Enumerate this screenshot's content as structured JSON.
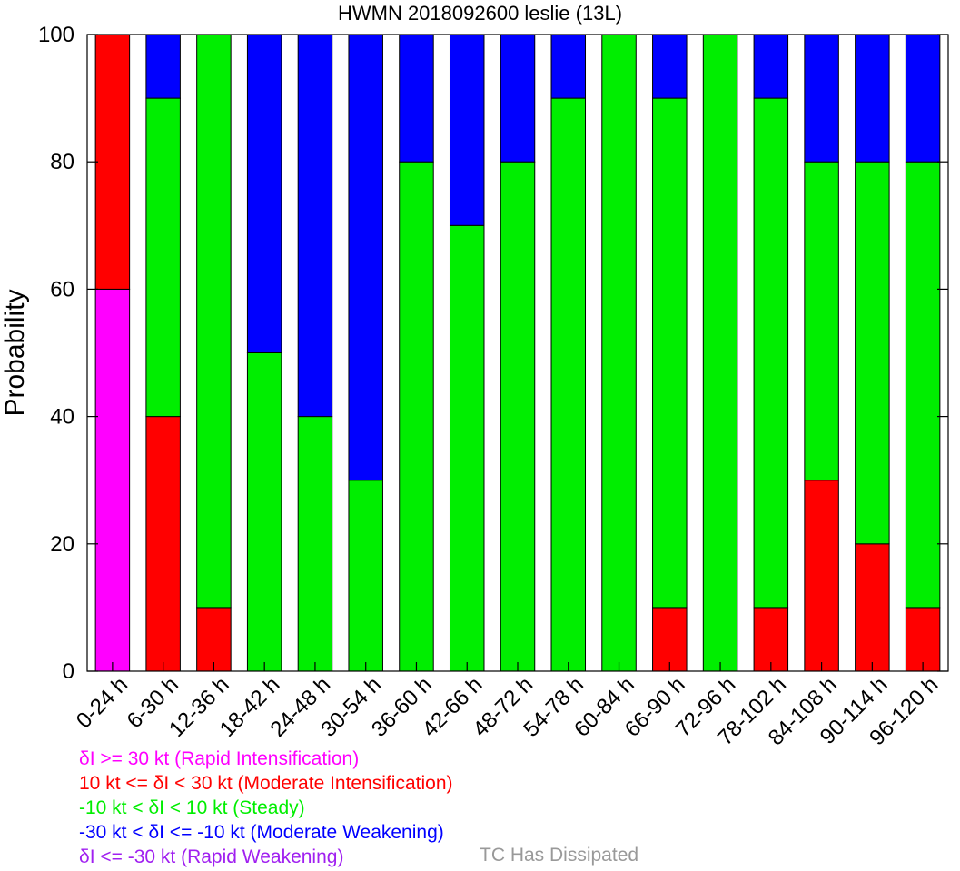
{
  "chart_data": {
    "type": "bar",
    "stacked": true,
    "title": "HWMN 2018092600 leslie (13L)",
    "ylabel": "Probability",
    "ylim": [
      0,
      100
    ],
    "yticks": [
      "0",
      "20",
      "40",
      "60",
      "80",
      "100"
    ],
    "categories": [
      "0-24 h",
      "6-30 h",
      "12-36 h",
      "18-42 h",
      "24-48 h",
      "30-54 h",
      "36-60 h",
      "42-66 h",
      "48-72 h",
      "54-78 h",
      "60-84 h",
      "66-90 h",
      "72-96 h",
      "78-102 h",
      "84-108 h",
      "90-114 h",
      "96-120 h"
    ],
    "series": [
      {
        "name": "δI >= 30 kt (Rapid Intensification)",
        "color": "#ff00ff",
        "values": [
          60,
          0,
          0,
          0,
          0,
          0,
          0,
          0,
          0,
          0,
          0,
          0,
          0,
          0,
          0,
          0,
          0
        ]
      },
      {
        "name": "10 kt <= δI < 30 kt (Moderate Intensification)",
        "color": "#ff0000",
        "values": [
          40,
          40,
          10,
          0,
          0,
          0,
          0,
          0,
          0,
          0,
          0,
          10,
          0,
          10,
          30,
          20,
          10
        ]
      },
      {
        "name": "-10 kt < δI < 10 kt (Steady)",
        "color": "#00ee00",
        "values": [
          0,
          50,
          90,
          50,
          40,
          30,
          80,
          70,
          80,
          90,
          100,
          80,
          100,
          80,
          50,
          60,
          70
        ]
      },
      {
        "name": "-30 kt < δI <= -10 kt (Moderate Weakening)",
        "color": "#0000ff",
        "values": [
          0,
          10,
          0,
          50,
          60,
          70,
          20,
          30,
          20,
          10,
          0,
          10,
          0,
          10,
          20,
          20,
          20
        ]
      },
      {
        "name": "δI <= -30 kt (Rapid Weakening)",
        "color": "#a020f0",
        "values": [
          0,
          0,
          0,
          0,
          0,
          0,
          0,
          0,
          0,
          0,
          0,
          0,
          0,
          0,
          0,
          0,
          0
        ]
      }
    ],
    "legend": [
      {
        "label": "δI >= 30 kt (Rapid Intensification)",
        "color": "#ff00ff"
      },
      {
        "label": "10 kt <= δI < 30 kt (Moderate Intensification)",
        "color": "#ff0000"
      },
      {
        "label": "-10 kt < δI < 10 kt (Steady)",
        "color": "#00ee00"
      },
      {
        "label": "-30 kt < δI <= -10 kt (Moderate Weakening)",
        "color": "#0000ff"
      },
      {
        "label": "δI <= -30 kt (Rapid Weakening)",
        "color": "#a020f0"
      }
    ],
    "dissipated_label": "TC Has Dissipated",
    "dissipated_color": "#999999",
    "legend_placement": "bottom"
  }
}
